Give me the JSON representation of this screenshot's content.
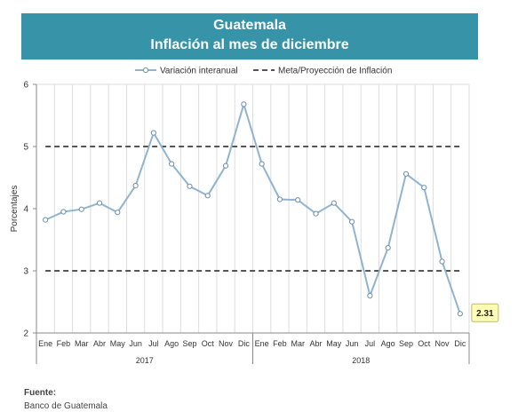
{
  "header": {
    "title": "Guatemala",
    "subtitle": "Inflación al mes de diciembre"
  },
  "source": {
    "label": "Fuente:",
    "text": "Banco de Guatemala"
  },
  "chart_data": {
    "type": "line",
    "title": "Inflación al mes de diciembre",
    "ylabel": "Porcentajes",
    "xlabel": "",
    "ylim": [
      2,
      6
    ],
    "yticks": [
      2,
      3,
      4,
      5,
      6
    ],
    "grid": "vertical",
    "legend_position": "top",
    "categories": [
      "Ene",
      "Feb",
      "Mar",
      "Abr",
      "May",
      "Jun",
      "Jul",
      "Ago",
      "Sep",
      "Oct",
      "Nov",
      "Dic",
      "Ene",
      "Feb",
      "Mar",
      "Abr",
      "May",
      "Jun",
      "Jul",
      "Ago",
      "Sep",
      "Oct",
      "Nov",
      "Dic"
    ],
    "year_groups": [
      {
        "label": "2017",
        "count": 12
      },
      {
        "label": "2018",
        "count": 12
      }
    ],
    "series": [
      {
        "name": "Variación interanual",
        "color": "#8fb4d1",
        "style": "line-with-markers",
        "values": [
          3.82,
          3.95,
          3.99,
          4.09,
          3.94,
          4.37,
          5.22,
          4.72,
          4.36,
          4.21,
          4.69,
          5.68,
          4.72,
          4.15,
          4.14,
          3.92,
          4.09,
          3.79,
          2.6,
          3.37,
          4.56,
          4.34,
          3.15,
          2.31
        ]
      },
      {
        "name": "Meta/Proyección de Inflación",
        "color": "#555555",
        "style": "dashed",
        "bounds": [
          3,
          5
        ]
      }
    ],
    "annotation": {
      "text": "2.31",
      "target_index": 23,
      "background": "#ffffb3",
      "border": "#b8b86e"
    }
  }
}
